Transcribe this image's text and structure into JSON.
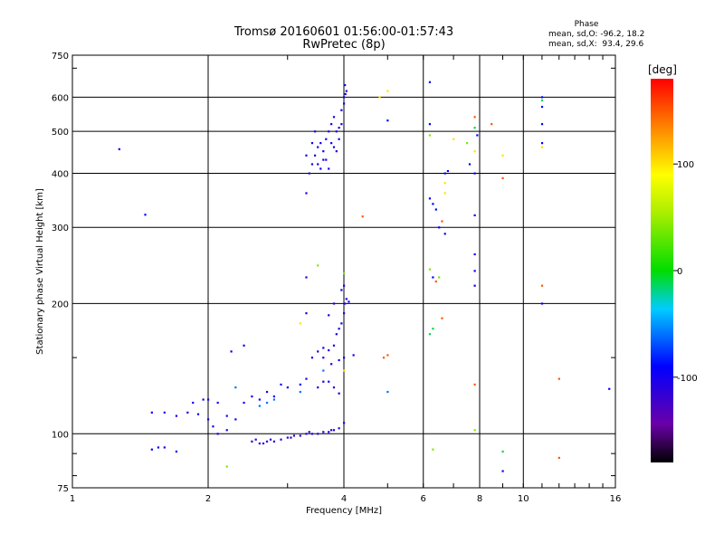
{
  "title_line1": "Tromsø 20160601 01:56:00-01:57:43",
  "title_line2": "RwPretec (8p)",
  "phase_panel": {
    "title": "Phase",
    "stat_o": "mean, sd,O: -96.2, 18.2",
    "stat_x": "mean, sd,X:  93.4, 29.6"
  },
  "colorbar": {
    "unit": "[deg]",
    "range": [
      -180,
      180
    ],
    "ticks": [
      {
        "value": 100,
        "label": "100"
      },
      {
        "value": 0,
        "label": "0"
      },
      {
        "value": -100,
        "label": "-100"
      }
    ]
  },
  "chart_data": {
    "type": "scatter",
    "title": "Tromsø 20160601 01:56:00-01:57:43",
    "subtitle": "RwPretec (8p)",
    "xlabel": "Frequency [MHz]",
    "ylabel": "Stationary phase Virtual Height [km]",
    "x_scale": "log",
    "y_scale": "log",
    "xlim": [
      1,
      16
    ],
    "ylim": [
      75,
      750
    ],
    "xticks": [
      1,
      2,
      4,
      6,
      8,
      10,
      16
    ],
    "yticks": [
      75,
      100,
      200,
      300,
      400,
      500,
      600,
      750
    ],
    "grid": true,
    "color_variable": "phase [deg]",
    "clusters": [
      {
        "phase": -100,
        "points": [
          [
            3.3,
            360
          ],
          [
            3.35,
            400
          ],
          [
            3.4,
            420
          ],
          [
            3.45,
            440
          ],
          [
            3.5,
            460
          ],
          [
            3.55,
            470
          ],
          [
            3.6,
            450
          ],
          [
            3.65,
            480
          ],
          [
            3.7,
            500
          ],
          [
            3.75,
            520
          ],
          [
            3.8,
            540
          ],
          [
            3.85,
            500
          ],
          [
            3.9,
            480
          ],
          [
            3.95,
            560
          ],
          [
            4.0,
            600
          ],
          [
            4.02,
            640
          ],
          [
            4.05,
            620
          ],
          [
            3.5,
            420
          ],
          [
            3.6,
            430
          ],
          [
            3.4,
            470
          ],
          [
            3.7,
            410
          ],
          [
            3.8,
            460
          ],
          [
            3.9,
            510
          ],
          [
            3.3,
            440
          ],
          [
            3.45,
            500
          ],
          [
            3.55,
            410
          ],
          [
            3.65,
            430
          ],
          [
            3.75,
            470
          ],
          [
            3.85,
            450
          ],
          [
            3.95,
            520
          ],
          [
            4.0,
            580
          ],
          [
            4.03,
            610
          ]
        ]
      },
      {
        "phase": -110,
        "points": [
          [
            2.5,
            96
          ],
          [
            2.6,
            95
          ],
          [
            2.7,
            96
          ],
          [
            2.8,
            96
          ],
          [
            2.9,
            97
          ],
          [
            3.0,
            98
          ],
          [
            3.1,
            99
          ],
          [
            3.2,
            99
          ],
          [
            3.3,
            100
          ],
          [
            3.4,
            100
          ],
          [
            3.5,
            100
          ],
          [
            3.6,
            101
          ],
          [
            3.7,
            101
          ],
          [
            3.8,
            102
          ],
          [
            3.9,
            103
          ],
          [
            4.0,
            106
          ],
          [
            2.55,
            97
          ],
          [
            2.65,
            95
          ],
          [
            2.75,
            97
          ],
          [
            3.05,
            98
          ],
          [
            3.35,
            101
          ],
          [
            3.75,
            102
          ]
        ]
      },
      {
        "phase": -100,
        "points": [
          [
            1.5,
            112
          ],
          [
            1.6,
            112
          ],
          [
            1.7,
            110
          ],
          [
            1.8,
            112
          ],
          [
            1.9,
            111
          ],
          [
            2.0,
            108
          ],
          [
            2.05,
            104
          ],
          [
            2.1,
            100
          ],
          [
            2.2,
            102
          ],
          [
            2.3,
            108
          ],
          [
            1.85,
            118
          ],
          [
            1.95,
            120
          ],
          [
            2.0,
            120
          ],
          [
            2.1,
            118
          ],
          [
            2.2,
            110
          ],
          [
            2.4,
            118
          ],
          [
            2.5,
            122
          ],
          [
            2.6,
            120
          ],
          [
            2.7,
            125
          ],
          [
            2.8,
            122
          ],
          [
            2.9,
            130
          ],
          [
            3.0,
            128
          ],
          [
            3.2,
            130
          ],
          [
            3.3,
            134
          ],
          [
            3.5,
            128
          ],
          [
            3.6,
            132
          ],
          [
            3.7,
            132
          ],
          [
            3.8,
            128
          ],
          [
            3.9,
            124
          ]
        ]
      },
      {
        "phase": -100,
        "points": [
          [
            3.4,
            150
          ],
          [
            3.5,
            155
          ],
          [
            3.6,
            158
          ],
          [
            3.7,
            156
          ],
          [
            3.8,
            160
          ],
          [
            3.85,
            170
          ],
          [
            3.9,
            175
          ],
          [
            3.95,
            180
          ],
          [
            4.0,
            190
          ],
          [
            4.02,
            200
          ],
          [
            4.05,
            205
          ],
          [
            4.1,
            202
          ],
          [
            3.95,
            215
          ],
          [
            4.0,
            220
          ],
          [
            3.8,
            200
          ],
          [
            3.7,
            188
          ],
          [
            3.6,
            150
          ],
          [
            3.75,
            145
          ],
          [
            3.9,
            148
          ],
          [
            4.0,
            150
          ],
          [
            4.2,
            152
          ],
          [
            3.3,
            190
          ],
          [
            3.3,
            230
          ]
        ]
      },
      {
        "phase": -90,
        "points": [
          [
            1.5,
            92
          ],
          [
            1.55,
            93
          ],
          [
            1.6,
            93
          ],
          [
            1.7,
            91
          ],
          [
            1.45,
            321
          ],
          [
            1.27,
            455
          ],
          [
            2.25,
            155
          ],
          [
            2.4,
            160
          ]
        ]
      },
      {
        "phase": -60,
        "points": [
          [
            2.6,
            116
          ],
          [
            2.7,
            118
          ],
          [
            2.8,
            120
          ],
          [
            3.2,
            125
          ],
          [
            3.6,
            140
          ],
          [
            2.3,
            128
          ],
          [
            5.0,
            125
          ]
        ]
      },
      {
        "phase": 40,
        "points": [
          [
            3.5,
            245
          ],
          [
            4.0,
            235
          ],
          [
            2.2,
            84
          ],
          [
            6.3,
            92
          ],
          [
            7.8,
            102
          ],
          [
            6.2,
            240
          ],
          [
            6.5,
            230
          ],
          [
            7.5,
            470
          ],
          [
            6.2,
            490
          ]
        ]
      },
      {
        "phase": 100,
        "points": [
          [
            3.2,
            180
          ],
          [
            4.0,
            140
          ],
          [
            4.8,
            600
          ],
          [
            5.0,
            620
          ],
          [
            7.0,
            480
          ],
          [
            7.8,
            450
          ],
          [
            9.0,
            440
          ],
          [
            11.0,
            460
          ],
          [
            6.7,
            360
          ],
          [
            6.7,
            380
          ]
        ]
      },
      {
        "phase": 150,
        "points": [
          [
            4.4,
            318
          ],
          [
            4.9,
            150
          ],
          [
            5.0,
            152
          ],
          [
            6.6,
            185
          ],
          [
            6.6,
            310
          ],
          [
            7.8,
            130
          ],
          [
            7.8,
            540
          ],
          [
            8.5,
            520
          ],
          [
            9.0,
            390
          ],
          [
            11.0,
            220
          ],
          [
            12.0,
            88
          ],
          [
            12.0,
            134
          ],
          [
            6.4,
            225
          ]
        ]
      },
      {
        "phase": -90,
        "points": [
          [
            6.2,
            350
          ],
          [
            6.3,
            340
          ],
          [
            6.4,
            330
          ],
          [
            6.5,
            300
          ],
          [
            6.7,
            400
          ],
          [
            6.7,
            290
          ],
          [
            7.8,
            320
          ],
          [
            7.8,
            260
          ],
          [
            7.8,
            220
          ],
          [
            7.6,
            420
          ],
          [
            7.8,
            400
          ],
          [
            9.0,
            82
          ],
          [
            11.0,
            200
          ],
          [
            11.0,
            520
          ],
          [
            11.0,
            570
          ],
          [
            11.0,
            600
          ],
          [
            15.5,
            127
          ],
          [
            6.2,
            650
          ],
          [
            6.2,
            520
          ],
          [
            6.8,
            405
          ],
          [
            7.9,
            490
          ],
          [
            6.3,
            230
          ],
          [
            7.8,
            238
          ],
          [
            5.0,
            530
          ],
          [
            11.0,
            470
          ]
        ]
      },
      {
        "phase": -10,
        "points": [
          [
            6.2,
            170
          ],
          [
            6.3,
            175
          ],
          [
            7.8,
            510
          ],
          [
            9.0,
            91
          ],
          [
            11.0,
            590
          ]
        ]
      }
    ]
  }
}
